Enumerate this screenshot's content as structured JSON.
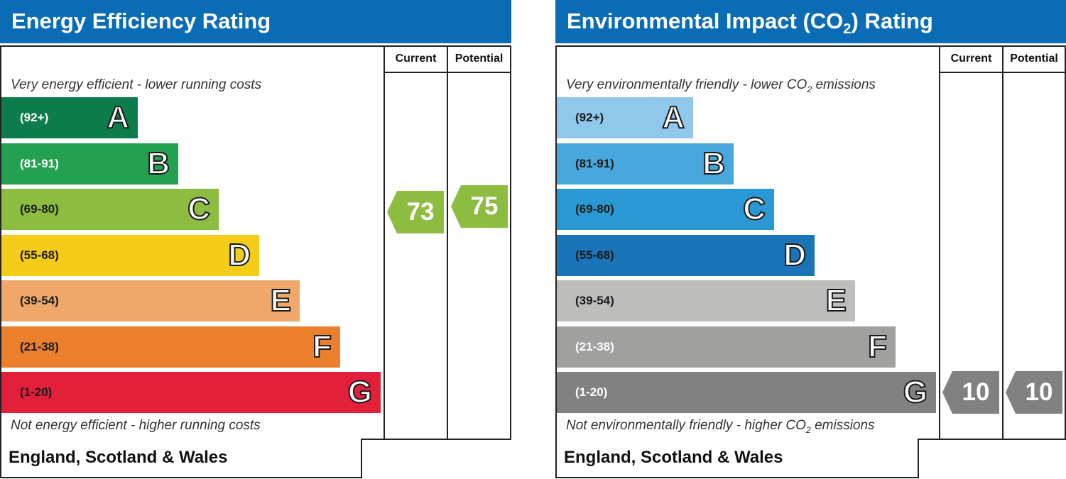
{
  "chart_data": [
    {
      "type": "bar",
      "title": "Energy Efficiency Rating",
      "column_headers": [
        "Current",
        "Potential"
      ],
      "top_caption": "Very energy efficient - lower running costs",
      "bottom_caption": "Not energy efficient - higher running costs",
      "categories": [
        "A",
        "B",
        "C",
        "D",
        "E",
        "F",
        "G"
      ],
      "ranges": [
        "(92+)",
        "(81-91)",
        "(69-80)",
        "(55-68)",
        "(39-54)",
        "(21-38)",
        "(1-20)"
      ],
      "colors": [
        "#0d7c4d",
        "#23a050",
        "#8cbd41",
        "#f5cd19",
        "#f0a86a",
        "#ec7f2b",
        "#e2203a"
      ],
      "range_text_colors": [
        "#ffffff",
        "#ffffff",
        "#1a1a1a",
        "#1a1a1a",
        "#1a1a1a",
        "#1a1a1a",
        "#1a1a1a"
      ],
      "current": {
        "value": 73,
        "band": "C",
        "color": "#8cbd41"
      },
      "potential": {
        "value": 75,
        "band": "C",
        "color": "#8cbd41"
      },
      "footer": "England, Scotland & Wales"
    },
    {
      "type": "bar",
      "title_prefix": "Environmental Impact (CO",
      "title_sub": "2",
      "title_suffix": ") Rating",
      "column_headers": [
        "Current",
        "Potential"
      ],
      "top_caption_prefix": "Very environmentally friendly - lower CO",
      "top_caption_sub": "2",
      "top_caption_suffix": " emissions",
      "bottom_caption_prefix": "Not environmentally friendly - higher CO",
      "bottom_caption_sub": "2",
      "bottom_caption_suffix": " emissions",
      "categories": [
        "A",
        "B",
        "C",
        "D",
        "E",
        "F",
        "G"
      ],
      "ranges": [
        "(92+)",
        "(81-91)",
        "(69-80)",
        "(55-68)",
        "(39-54)",
        "(21-38)",
        "(1-20)"
      ],
      "colors": [
        "#8fc8ea",
        "#48a7dc",
        "#2a98d2",
        "#1b73b8",
        "#bdbdbb",
        "#a0a09f",
        "#818181"
      ],
      "range_text_colors": [
        "#1a1a1a",
        "#1a1a1a",
        "#1a1a1a",
        "#1a1a1a",
        "#1a1a1a",
        "#ffffff",
        "#ffffff"
      ],
      "current": {
        "value": 10,
        "band": "G",
        "color": "#818181"
      },
      "potential": {
        "value": 10,
        "band": "G",
        "color": "#818181"
      },
      "footer": "England, Scotland & Wales"
    }
  ]
}
